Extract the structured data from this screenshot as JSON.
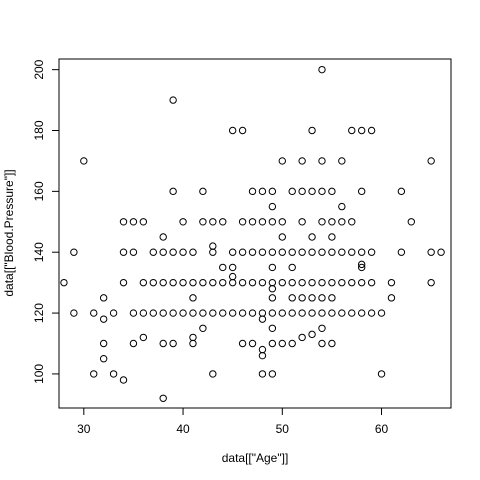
{
  "chart_data": {
    "type": "scatter",
    "title": "",
    "xlabel": "data[[\"Age\"]]",
    "ylabel": "data[[\"Blood.Pressure\"]]",
    "xlim": [
      27.5,
      67.0
    ],
    "ylim": [
      88.8,
      203.5
    ],
    "x_ticks": [
      30,
      40,
      50,
      60
    ],
    "y_ticks": [
      100,
      120,
      140,
      160,
      180,
      200
    ],
    "grid": false,
    "legend": "none",
    "points": [
      [
        28,
        130
      ],
      [
        29,
        140
      ],
      [
        29,
        120
      ],
      [
        30,
        170
      ],
      [
        31,
        120
      ],
      [
        31,
        100
      ],
      [
        32,
        125
      ],
      [
        32,
        118
      ],
      [
        32,
        110
      ],
      [
        32,
        105
      ],
      [
        33,
        120
      ],
      [
        33,
        100
      ],
      [
        34,
        150
      ],
      [
        34,
        140
      ],
      [
        34,
        130
      ],
      [
        34,
        98
      ],
      [
        35,
        150
      ],
      [
        35,
        140
      ],
      [
        35,
        120
      ],
      [
        35,
        110
      ],
      [
        36,
        150
      ],
      [
        36,
        130
      ],
      [
        36,
        120
      ],
      [
        36,
        112
      ],
      [
        37,
        140
      ],
      [
        37,
        130
      ],
      [
        37,
        120
      ],
      [
        38,
        145
      ],
      [
        38,
        140
      ],
      [
        38,
        130
      ],
      [
        38,
        120
      ],
      [
        38,
        110
      ],
      [
        38,
        92
      ],
      [
        39,
        190
      ],
      [
        39,
        160
      ],
      [
        39,
        140
      ],
      [
        39,
        130
      ],
      [
        39,
        120
      ],
      [
        39,
        110
      ],
      [
        40,
        150
      ],
      [
        40,
        140
      ],
      [
        40,
        130
      ],
      [
        40,
        120
      ],
      [
        41,
        140
      ],
      [
        41,
        130
      ],
      [
        41,
        125
      ],
      [
        41,
        120
      ],
      [
        41,
        112
      ],
      [
        41,
        110
      ],
      [
        42,
        160
      ],
      [
        42,
        150
      ],
      [
        42,
        130
      ],
      [
        42,
        120
      ],
      [
        42,
        115
      ],
      [
        43,
        150
      ],
      [
        43,
        142
      ],
      [
        43,
        140
      ],
      [
        43,
        130
      ],
      [
        43,
        120
      ],
      [
        43,
        100
      ],
      [
        44,
        150
      ],
      [
        44,
        135
      ],
      [
        44,
        130
      ],
      [
        44,
        120
      ],
      [
        45,
        180
      ],
      [
        45,
        140
      ],
      [
        45,
        135
      ],
      [
        45,
        132
      ],
      [
        45,
        130
      ],
      [
        45,
        120
      ],
      [
        46,
        180
      ],
      [
        46,
        150
      ],
      [
        46,
        140
      ],
      [
        46,
        130
      ],
      [
        46,
        120
      ],
      [
        46,
        110
      ],
      [
        47,
        160
      ],
      [
        47,
        150
      ],
      [
        47,
        140
      ],
      [
        47,
        130
      ],
      [
        47,
        120
      ],
      [
        47,
        110
      ],
      [
        48,
        160
      ],
      [
        48,
        150
      ],
      [
        48,
        140
      ],
      [
        48,
        130
      ],
      [
        48,
        120
      ],
      [
        48,
        118
      ],
      [
        48,
        108
      ],
      [
        48,
        106
      ],
      [
        48,
        100
      ],
      [
        49,
        160
      ],
      [
        49,
        155
      ],
      [
        49,
        150
      ],
      [
        49,
        140
      ],
      [
        49,
        135
      ],
      [
        49,
        130
      ],
      [
        49,
        128
      ],
      [
        49,
        125
      ],
      [
        49,
        120
      ],
      [
        49,
        115
      ],
      [
        49,
        110
      ],
      [
        49,
        100
      ],
      [
        50,
        170
      ],
      [
        50,
        150
      ],
      [
        50,
        145
      ],
      [
        50,
        140
      ],
      [
        50,
        130
      ],
      [
        50,
        120
      ],
      [
        50,
        110
      ],
      [
        51,
        160
      ],
      [
        51,
        140
      ],
      [
        51,
        135
      ],
      [
        51,
        130
      ],
      [
        51,
        125
      ],
      [
        51,
        120
      ],
      [
        51,
        110
      ],
      [
        52,
        170
      ],
      [
        52,
        160
      ],
      [
        52,
        150
      ],
      [
        52,
        140
      ],
      [
        52,
        130
      ],
      [
        52,
        125
      ],
      [
        52,
        120
      ],
      [
        52,
        112
      ],
      [
        53,
        180
      ],
      [
        53,
        160
      ],
      [
        53,
        145
      ],
      [
        53,
        140
      ],
      [
        53,
        130
      ],
      [
        53,
        125
      ],
      [
        53,
        120
      ],
      [
        53,
        113
      ],
      [
        54,
        200
      ],
      [
        54,
        170
      ],
      [
        54,
        160
      ],
      [
        54,
        150
      ],
      [
        54,
        140
      ],
      [
        54,
        130
      ],
      [
        54,
        125
      ],
      [
        54,
        120
      ],
      [
        54,
        115
      ],
      [
        54,
        110
      ],
      [
        55,
        160
      ],
      [
        55,
        150
      ],
      [
        55,
        145
      ],
      [
        55,
        140
      ],
      [
        55,
        130
      ],
      [
        55,
        125
      ],
      [
        55,
        120
      ],
      [
        55,
        110
      ],
      [
        56,
        170
      ],
      [
        56,
        155
      ],
      [
        56,
        150
      ],
      [
        56,
        140
      ],
      [
        56,
        130
      ],
      [
        56,
        120
      ],
      [
        57,
        180
      ],
      [
        57,
        150
      ],
      [
        57,
        140
      ],
      [
        57,
        130
      ],
      [
        57,
        120
      ],
      [
        58,
        180
      ],
      [
        58,
        160
      ],
      [
        58,
        140
      ],
      [
        58,
        136
      ],
      [
        58,
        135
      ],
      [
        58,
        130
      ],
      [
        58,
        120
      ],
      [
        59,
        180
      ],
      [
        59,
        140
      ],
      [
        59,
        130
      ],
      [
        59,
        120
      ],
      [
        60,
        120
      ],
      [
        60,
        100
      ],
      [
        61,
        130
      ],
      [
        61,
        125
      ],
      [
        62,
        160
      ],
      [
        62,
        140
      ],
      [
        63,
        150
      ],
      [
        65,
        170
      ],
      [
        65,
        140
      ],
      [
        65,
        130
      ],
      [
        66,
        140
      ]
    ]
  }
}
